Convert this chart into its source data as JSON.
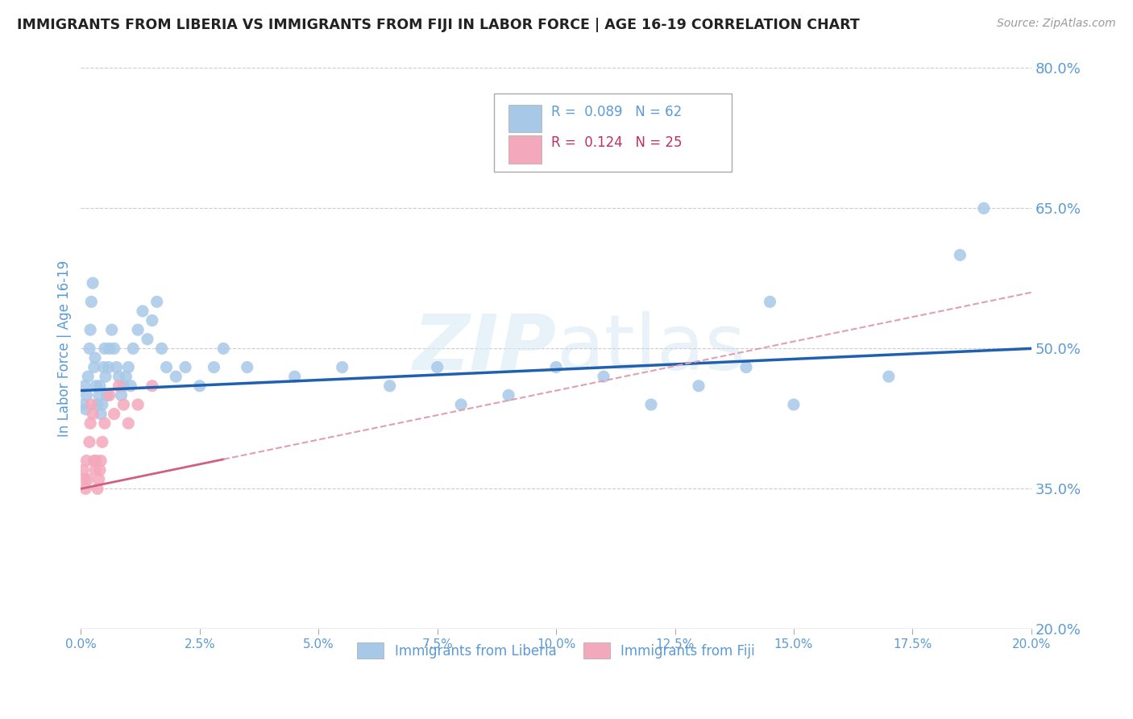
{
  "title": "IMMIGRANTS FROM LIBERIA VS IMMIGRANTS FROM FIJI IN LABOR FORCE | AGE 16-19 CORRELATION CHART",
  "source": "Source: ZipAtlas.com",
  "ylabel_label": "In Labor Force | Age 16-19",
  "legend_liberia": "Immigrants from Liberia",
  "legend_fiji": "Immigrants from Fiji",
  "liberia_R": "0.089",
  "liberia_N": "62",
  "fiji_R": "0.124",
  "fiji_N": "25",
  "liberia_color": "#a8c8e8",
  "fiji_color": "#f4a8bc",
  "liberia_line_color": "#2060b0",
  "fiji_line_color": "#d06080",
  "fiji_dash_color": "#e0a0b0",
  "title_color": "#222222",
  "axis_color": "#5b9bd5",
  "grid_color": "#cccccc",
  "background_color": "#ffffff",
  "xmin": 0.0,
  "xmax": 20.0,
  "ymin": 20.0,
  "ymax": 80.0,
  "liberia_x": [
    0.05,
    0.08,
    0.1,
    0.12,
    0.15,
    0.18,
    0.2,
    0.22,
    0.25,
    0.28,
    0.3,
    0.32,
    0.35,
    0.38,
    0.4,
    0.42,
    0.45,
    0.48,
    0.5,
    0.52,
    0.55,
    0.58,
    0.6,
    0.65,
    0.7,
    0.75,
    0.8,
    0.85,
    0.9,
    0.95,
    1.0,
    1.05,
    1.1,
    1.2,
    1.3,
    1.4,
    1.5,
    1.6,
    1.7,
    1.8,
    2.0,
    2.2,
    2.5,
    2.8,
    3.0,
    3.5,
    4.5,
    5.5,
    6.5,
    7.5,
    8.0,
    9.0,
    10.0,
    11.0,
    12.0,
    13.0,
    14.0,
    15.0,
    17.0,
    18.5,
    19.0,
    14.5
  ],
  "liberia_y": [
    44.0,
    46.0,
    43.5,
    45.0,
    47.0,
    50.0,
    52.0,
    55.0,
    57.0,
    48.0,
    49.0,
    46.0,
    44.0,
    45.0,
    46.0,
    43.0,
    44.0,
    48.0,
    50.0,
    47.0,
    45.0,
    48.0,
    50.0,
    52.0,
    50.0,
    48.0,
    47.0,
    45.0,
    46.0,
    47.0,
    48.0,
    46.0,
    50.0,
    52.0,
    54.0,
    51.0,
    53.0,
    55.0,
    50.0,
    48.0,
    47.0,
    48.0,
    46.0,
    48.0,
    50.0,
    48.0,
    47.0,
    48.0,
    46.0,
    48.0,
    44.0,
    45.0,
    48.0,
    47.0,
    44.0,
    46.0,
    48.0,
    44.0,
    47.0,
    60.0,
    65.0,
    55.0
  ],
  "fiji_x": [
    0.05,
    0.08,
    0.1,
    0.12,
    0.15,
    0.18,
    0.2,
    0.22,
    0.25,
    0.28,
    0.3,
    0.32,
    0.35,
    0.38,
    0.4,
    0.42,
    0.45,
    0.5,
    0.6,
    0.7,
    0.8,
    0.9,
    1.0,
    1.2,
    1.5
  ],
  "fiji_y": [
    37.0,
    36.0,
    35.0,
    38.0,
    36.0,
    40.0,
    42.0,
    44.0,
    43.0,
    38.0,
    37.0,
    38.0,
    35.0,
    36.0,
    37.0,
    38.0,
    40.0,
    42.0,
    45.0,
    43.0,
    46.0,
    44.0,
    42.0,
    44.0,
    46.0
  ],
  "watermark_zip": "ZIP",
  "watermark_atlas": "atlas",
  "yticks": [
    20.0,
    35.0,
    50.0,
    65.0,
    80.0
  ],
  "ytick_labels": [
    "20.0%",
    "35.0%",
    "50.0%",
    "65.0%",
    "80.0%"
  ],
  "xticks": [
    0.0,
    2.5,
    5.0,
    7.5,
    10.0,
    12.5,
    15.0,
    17.5,
    20.0
  ],
  "liberia_trend_x0": 0.0,
  "liberia_trend_y0": 45.5,
  "liberia_trend_x1": 20.0,
  "liberia_trend_y1": 50.0,
  "fiji_trend_x0": 0.0,
  "fiji_trend_y0": 35.0,
  "fiji_trend_x1": 20.0,
  "fiji_trend_y1": 56.0
}
